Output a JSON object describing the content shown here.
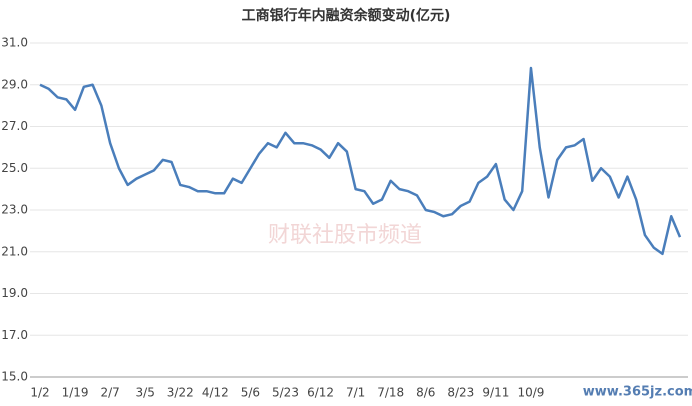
{
  "chart_data": {
    "type": "line",
    "title": "工商银行年内融资余额变动(亿元)",
    "watermark": "财联社股市频道",
    "site_mark": "www.365jz.com",
    "categories": [
      "1/2",
      null,
      null,
      null,
      "1/19",
      null,
      null,
      null,
      "2/7",
      null,
      null,
      null,
      "3/5",
      null,
      null,
      null,
      "3/22",
      null,
      null,
      null,
      "4/12",
      null,
      null,
      null,
      "5/6",
      null,
      null,
      null,
      "5/23",
      null,
      null,
      null,
      "6/12",
      null,
      null,
      null,
      "7/1",
      null,
      null,
      null,
      "7/18",
      null,
      null,
      null,
      "8/6",
      null,
      null,
      null,
      "8/23",
      null,
      null,
      null,
      "9/11",
      null,
      null,
      null,
      "10/9",
      null,
      null,
      null,
      null,
      null,
      null,
      null,
      null,
      null,
      null,
      null,
      null,
      null,
      null,
      null,
      null,
      null
    ],
    "series": [
      {
        "name": "融资余额",
        "color": "#4a7ebb",
        "values": [
          29.0,
          28.8,
          28.4,
          28.3,
          27.8,
          28.9,
          29.0,
          28.0,
          26.2,
          25.0,
          24.2,
          24.5,
          24.7,
          24.9,
          25.4,
          25.3,
          24.2,
          24.1,
          23.9,
          23.9,
          23.8,
          23.8,
          24.5,
          24.3,
          25.0,
          25.7,
          26.2,
          26.0,
          26.7,
          26.2,
          26.2,
          26.1,
          25.9,
          25.5,
          26.2,
          25.8,
          24.0,
          23.9,
          23.3,
          23.5,
          24.4,
          24.0,
          23.9,
          23.7,
          23.0,
          22.9,
          22.7,
          22.8,
          23.2,
          23.4,
          24.3,
          24.6,
          25.2,
          23.5,
          23.0,
          23.9,
          29.8,
          26.0,
          23.6,
          25.4,
          26.0,
          26.1,
          26.4,
          24.4,
          25.0,
          24.6,
          23.6,
          24.6,
          23.5,
          21.8,
          21.2,
          20.9,
          22.7,
          21.7
        ]
      }
    ],
    "ylim": [
      15,
      31
    ],
    "yticks": [
      {
        "value": 15,
        "label": "15.0"
      },
      {
        "value": 17,
        "label": "17.0"
      },
      {
        "value": 19,
        "label": "19.0"
      },
      {
        "value": 21,
        "label": "21.0"
      },
      {
        "value": 23,
        "label": "23.0"
      },
      {
        "value": 25,
        "label": "25.0"
      },
      {
        "value": 27,
        "label": "27.0"
      },
      {
        "value": 29,
        "label": "29.0"
      },
      {
        "value": 31,
        "label": "31.0"
      }
    ],
    "grid": true
  }
}
